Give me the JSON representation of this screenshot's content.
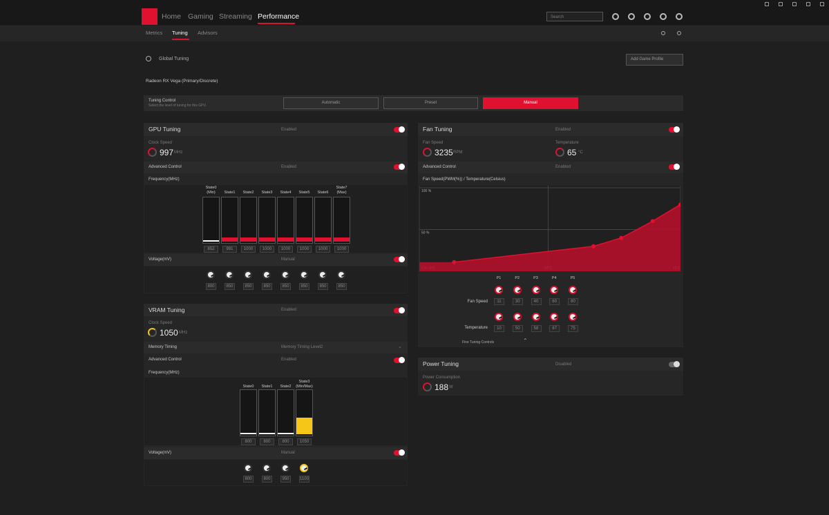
{
  "window": {
    "nav": [
      "Home",
      "Gaming",
      "Streaming",
      "Performance"
    ],
    "search_placeholder": "Search",
    "subnav": [
      "Metrics",
      "Tuning",
      "Advisors"
    ]
  },
  "profile": {
    "label": "Global Tuning",
    "add_button": "Add Game Profile",
    "gpu_name": "Radeon RX Vega (Primary/Discrete)"
  },
  "tuning_control": {
    "title": "Tuning Control",
    "description": "Select the level of tuning for this GPU",
    "options": [
      "Automatic",
      "Preset",
      "Manual"
    ]
  },
  "gpu_tuning": {
    "title": "GPU Tuning",
    "status": "Enabled",
    "clock_label": "Clock Speed",
    "clock_value": 997,
    "clock_unit": "MHz",
    "advanced_label": "Advanced Control",
    "advanced_status": "Enabled",
    "frequency_label": "Frequency(MHz)",
    "state_labels": [
      [
        "State0",
        "(Min)"
      ],
      [
        "State1"
      ],
      [
        "State2"
      ],
      [
        "State3"
      ],
      [
        "State4"
      ],
      [
        "State5"
      ],
      [
        "State6"
      ],
      [
        "State7",
        "(Max)"
      ]
    ],
    "frequencies": [
      852,
      991,
      1000,
      1000,
      1000,
      1000,
      1000,
      1000
    ],
    "voltage_label": "Voltage(mV)",
    "voltage_status": "Manual",
    "voltages": [
      800,
      850,
      850,
      850,
      850,
      850,
      850,
      850
    ]
  },
  "vram_tuning": {
    "title": "VRAM Tuning",
    "status": "Enabled",
    "clock_label": "Clock Speed",
    "clock_value": 1050,
    "clock_unit": "MHz",
    "memory_timing_label": "Memory Timing",
    "memory_timing_value": "Memory Timing Level2",
    "advanced_label": "Advanced Control",
    "advanced_status": "Enabled",
    "frequency_label": "Frequency(MHz)",
    "state_labels": [
      [
        "State0"
      ],
      [
        "State1"
      ],
      [
        "State2"
      ],
      [
        "State3",
        "(Min/Max)"
      ]
    ],
    "frequencies": [
      800,
      800,
      800,
      1050
    ],
    "voltage_label": "Voltage(mV)",
    "voltage_status": "Manual",
    "voltages": [
      800,
      800,
      950,
      1100
    ]
  },
  "fan_tuning": {
    "title": "Fan Tuning",
    "status": "Enabled",
    "fan_speed_label": "Fan Speed",
    "fan_speed_value": 3235,
    "fan_speed_unit": "RPM",
    "temperature_label": "Temperature",
    "temperature_value": 65,
    "temperature_unit": "°C",
    "advanced_label": "Advanced Control",
    "advanced_status": "Enabled",
    "curve": {
      "title": "Fan Speed(PWM(%)) / Temperature(Celsius)",
      "ylim": [
        0,
        100
      ],
      "yticks": [
        {
          "value": 100,
          "label": "100 %"
        },
        {
          "value": 50,
          "label": "50 %"
        }
      ],
      "xlim": [
        0,
        75
      ],
      "xticks": [
        {
          "value": 0,
          "label": "0 %, 0°C"
        },
        {
          "value": 37,
          "label": "37°C"
        },
        {
          "value": 75,
          "label": "75°C"
        }
      ]
    },
    "point_labels": [
      "P1",
      "P2",
      "P3",
      "P4",
      "P5"
    ],
    "fan_speed_row_label": "Fan Speed",
    "fan_speeds": [
      11,
      30,
      40,
      60,
      80
    ],
    "temperature_row_label": "Temperature",
    "temperatures": [
      10,
      50,
      58,
      67,
      75
    ],
    "fine_tuning": "Fine Tuning Controls"
  },
  "power_tuning": {
    "title": "Power Tuning",
    "status": "Disabled",
    "consumption_label": "Power Consumption",
    "consumption_value": 188,
    "consumption_unit": "W"
  }
}
